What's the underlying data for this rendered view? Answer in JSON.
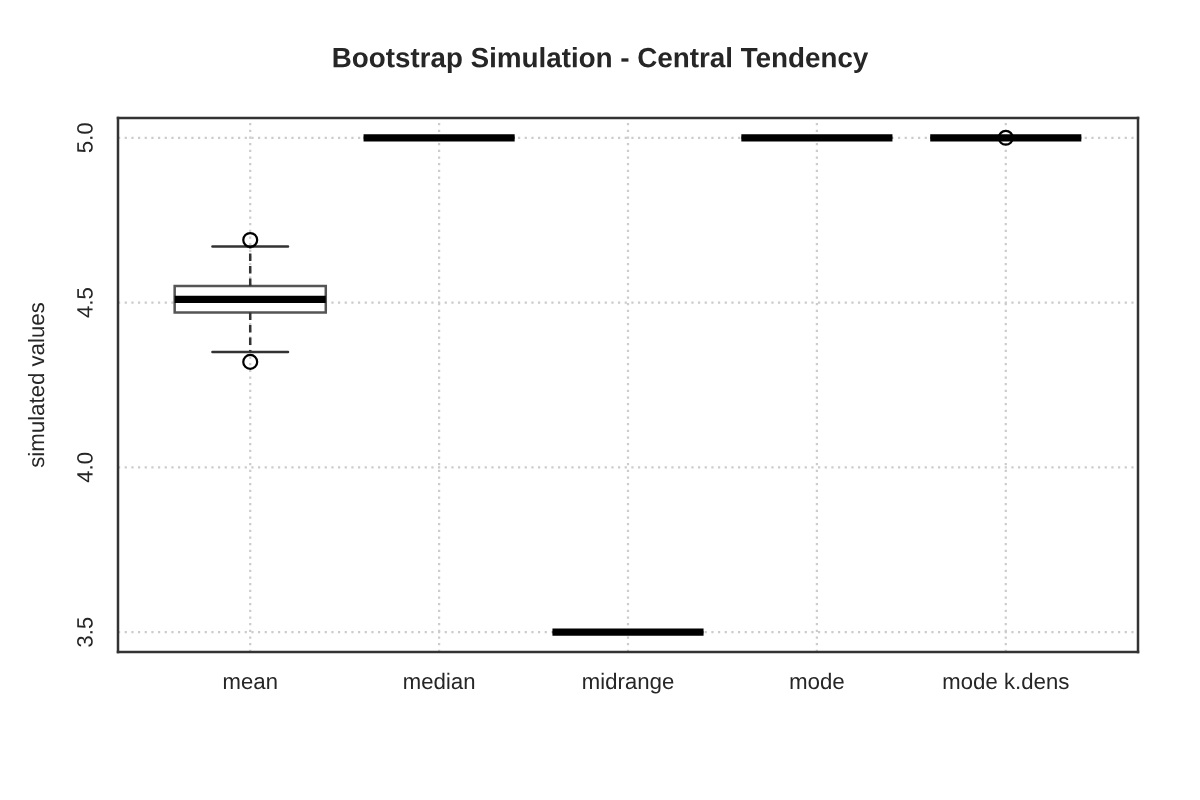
{
  "chart_data": {
    "type": "box",
    "title": "Bootstrap Simulation - Central Tendency",
    "ylabel": "simulated values",
    "categories": [
      "mean",
      "median",
      "midrange",
      "mode",
      "mode k.dens"
    ],
    "boxes": [
      {
        "low": 4.35,
        "q1": 4.47,
        "median": 4.51,
        "q3": 4.55,
        "high": 4.67,
        "outliers": [
          4.69,
          4.32
        ]
      },
      {
        "low": 5.0,
        "q1": 5.0,
        "median": 5.0,
        "q3": 5.0,
        "high": 5.0
      },
      {
        "low": 3.5,
        "q1": 3.5,
        "median": 3.5,
        "q3": 3.5,
        "high": 3.5
      },
      {
        "low": 5.0,
        "q1": 5.0,
        "median": 5.0,
        "q3": 5.0,
        "high": 5.0
      },
      {
        "low": 5.0,
        "q1": 5.0,
        "median": 5.0,
        "q3": 5.0,
        "high": 5.0,
        "outliers": [
          5.0
        ]
      }
    ],
    "ylim": [
      3.44,
      5.06
    ],
    "yticks": [
      3.5,
      {
        "value": 4,
        "label": "4.0"
      },
      4.5,
      {
        "value": 5,
        "label": "5.0"
      }
    ],
    "grid": true
  }
}
